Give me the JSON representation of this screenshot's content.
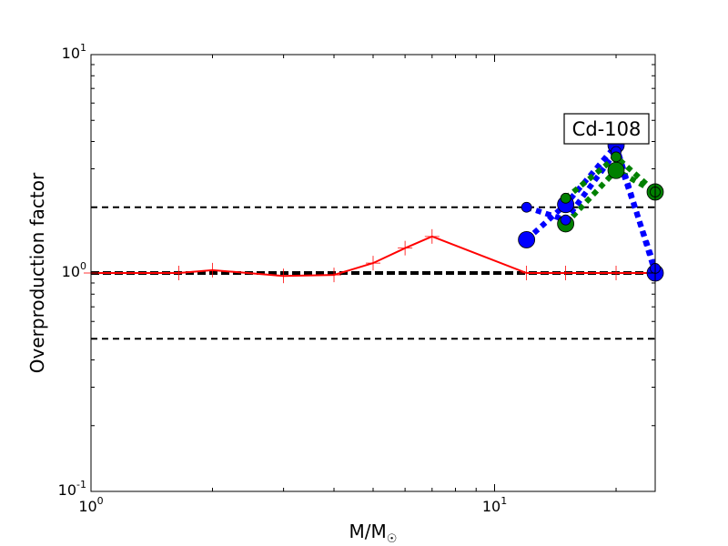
{
  "chart_data": {
    "type": "line",
    "xscale": "log",
    "yscale": "log",
    "xlim": [
      1,
      25
    ],
    "ylim": [
      0.1,
      10
    ],
    "xlabel": "M/M",
    "xlabel_sub": "☉",
    "ylabel": "Overproduction factor",
    "x_ticks": [
      {
        "value": 1,
        "base": "10",
        "exp": "0"
      },
      {
        "value": 10,
        "base": "10",
        "exp": "1"
      }
    ],
    "y_ticks": [
      {
        "value": 0.1,
        "base": "10",
        "exp": "-1"
      },
      {
        "value": 1,
        "base": "10",
        "exp": "0"
      },
      {
        "value": 10,
        "base": "10",
        "exp": "1"
      }
    ],
    "annotation": "Cd-108",
    "reference_lines": [
      {
        "y": 2,
        "style": "dashed",
        "color": "#000000",
        "width": 2
      },
      {
        "y": 1,
        "style": "dashed",
        "color": "#000000",
        "width": 4
      },
      {
        "y": 0.5,
        "style": "dashed",
        "color": "#000000",
        "width": 2
      }
    ],
    "series": [
      {
        "color": "#ff0000",
        "style": "solid",
        "marker": "plus",
        "x": [
          1.0,
          1.65,
          2.0,
          3.0,
          4.0,
          5.0,
          6.0,
          7.0,
          12.0,
          15.0,
          20.0,
          25.0
        ],
        "y": [
          1.0,
          1.0,
          1.03,
          0.97,
          0.98,
          1.11,
          1.3,
          1.47,
          1.0,
          1.0,
          1.0,
          1.0
        ]
      },
      {
        "color": "#0000ff",
        "style": "dotted",
        "marker": "circle",
        "x": [
          12.0,
          15.0,
          20.0,
          25.0
        ],
        "y": [
          1.42,
          2.06,
          3.85,
          1.0
        ]
      },
      {
        "color": "#008000",
        "style": "dotted",
        "marker": "circle",
        "x": [
          15.0,
          20.0,
          25.0
        ],
        "y": [
          1.68,
          2.95,
          2.35
        ]
      },
      {
        "color": "#0000ff",
        "style": "dotted",
        "marker": "small-circle",
        "x": [
          12.0,
          15.0,
          20.0,
          25.0
        ],
        "y": [
          2.0,
          1.75,
          3.6,
          1.05
        ]
      },
      {
        "color": "#008000",
        "style": "dotted",
        "marker": "small-circle",
        "x": [
          15.0,
          20.0,
          25.0
        ],
        "y": [
          2.2,
          3.4,
          2.35
        ]
      }
    ]
  }
}
